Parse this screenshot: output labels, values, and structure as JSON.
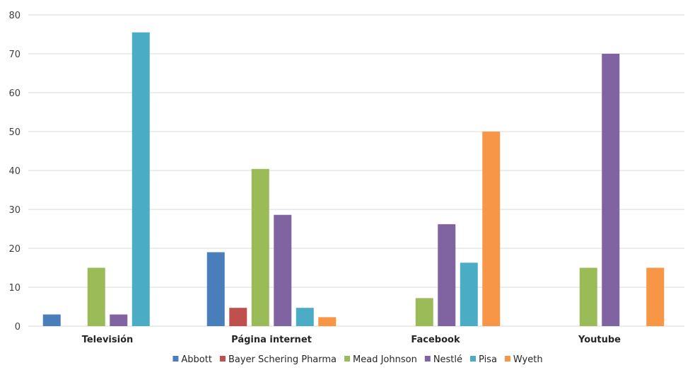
{
  "chart_data": {
    "type": "bar",
    "categories": [
      "Televisión",
      "Página internet",
      "Facebook",
      "Youtube"
    ],
    "series": [
      {
        "name": "Abbott",
        "color": "#4a7ebb",
        "values": [
          3,
          19,
          0,
          0
        ]
      },
      {
        "name": "Bayer Schering Pharma",
        "color": "#c0504d",
        "values": [
          0,
          4.7,
          0,
          0
        ]
      },
      {
        "name": "Mead Johnson",
        "color": "#9bbb59",
        "values": [
          15,
          40.4,
          7.2,
          15
        ]
      },
      {
        "name": "Nestlé",
        "color": "#8064a2",
        "values": [
          3,
          28.6,
          26.2,
          70
        ]
      },
      {
        "name": "Pisa",
        "color": "#4bacc6",
        "values": [
          75.5,
          4.7,
          16.3,
          0
        ]
      },
      {
        "name": "Wyeth",
        "color": "#f79646",
        "values": [
          0,
          2.3,
          50,
          15
        ]
      }
    ],
    "ylim": [
      0,
      80
    ],
    "yticks": [
      0,
      10,
      20,
      30,
      40,
      50,
      60,
      70,
      80
    ],
    "grid": true,
    "legend_position": "bottom"
  }
}
